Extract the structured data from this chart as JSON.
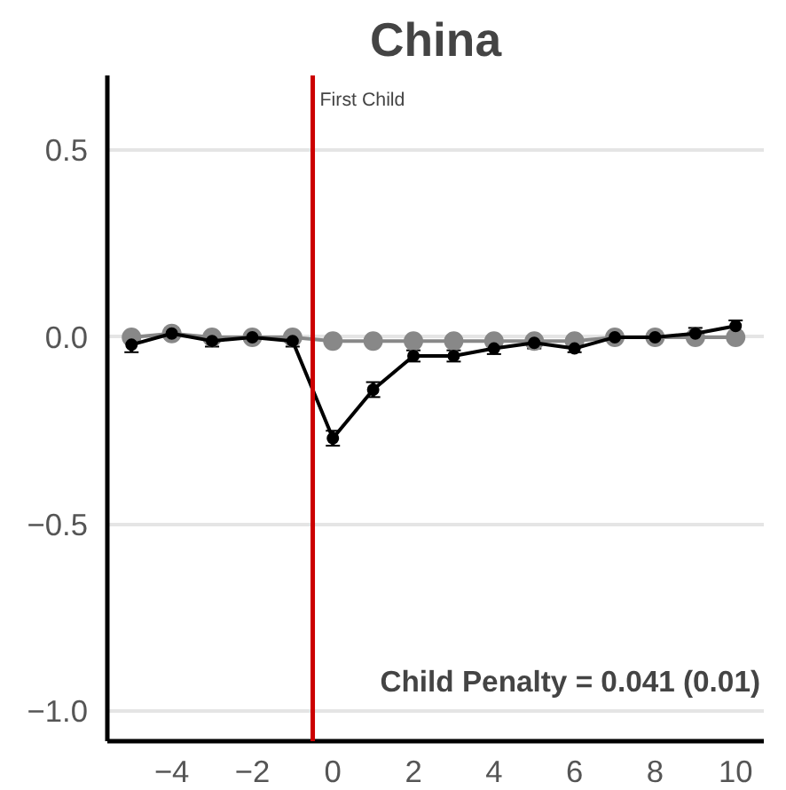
{
  "chart_data": {
    "type": "line",
    "title": "China",
    "x": [
      -5,
      -4,
      -3,
      -2,
      -1,
      0,
      1,
      2,
      3,
      4,
      5,
      6,
      7,
      8,
      9,
      10
    ],
    "series": [
      {
        "color": "#888888",
        "values": [
          0,
          0.01,
          0,
          0,
          0,
          -0.01,
          -0.01,
          -0.01,
          -0.01,
          -0.01,
          -0.01,
          -0.01,
          0,
          0,
          0,
          0
        ]
      },
      {
        "color": "#000000",
        "values": [
          -0.02,
          0.01,
          -0.01,
          0,
          -0.01,
          -0.27,
          -0.14,
          -0.05,
          -0.05,
          -0.03,
          -0.015,
          -0.03,
          0,
          0,
          0.01,
          0.03
        ],
        "errors": [
          0.02,
          0.015,
          0.015,
          0.005,
          0.015,
          0.02,
          0.02,
          0.015,
          0.015,
          0.015,
          0.015,
          0.01,
          0.015,
          0.015,
          0.015,
          0.015
        ]
      }
    ],
    "xlim": [
      -5.6,
      10.7
    ],
    "ylim": [
      -1.08,
      0.7
    ],
    "xticks": [
      {
        "value": -4,
        "label": "−4"
      },
      {
        "value": -2,
        "label": "−2"
      },
      0,
      2,
      4,
      6,
      8,
      10
    ],
    "yticks": [
      {
        "value": -1,
        "label": "−1.0"
      },
      {
        "value": -0.5,
        "label": "−0.5"
      },
      {
        "value": 0,
        "label": "0.0"
      },
      0.5
    ],
    "grid": "y",
    "marker": "circle",
    "line_style": "solid",
    "ref_lines": [
      {
        "axis": "x",
        "value": -0.5,
        "label": "First Child",
        "color": "#cc0000"
      }
    ],
    "annotations": [
      "Child Penalty = 0.041 (0.01)"
    ]
  }
}
